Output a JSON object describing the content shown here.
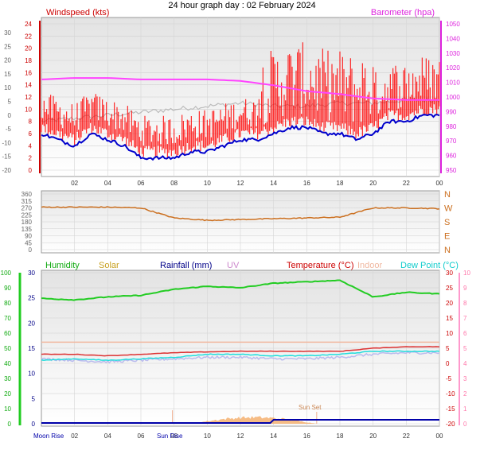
{
  "title": "24 hour graph day : 02 February 2024",
  "colors": {
    "wind": "#ff0000",
    "gust": "#ff0000",
    "wind_avg": "#0000cc",
    "wind_dir": "#cc7020",
    "barometer": "#ff44ff",
    "gray": "#bbbbbb",
    "humidity": "#22cc22",
    "solar": "#f5b070",
    "rainfall": "#0000aa",
    "uv": "#cc88cc",
    "temperature": "#dd3333",
    "indoor": "#f2b8a0",
    "dew_point": "#22dddd",
    "lavender": "#bbbbee"
  },
  "chart_data": [
    {
      "type": "line",
      "name": "wind-barometer",
      "xlabel_ticks": [
        "02",
        "04",
        "06",
        "08",
        "10",
        "12",
        "14",
        "16",
        "18",
        "20",
        "22",
        "00"
      ],
      "outer_left_ticks": [
        "30",
        "25",
        "20",
        "15",
        "10",
        "5",
        "0",
        "-5",
        "-10",
        "-15",
        "-20"
      ],
      "left_axis": {
        "title": "Windspeed (kts)",
        "ticks": [
          "24",
          "22",
          "20",
          "18",
          "16",
          "14",
          "12",
          "10",
          "8",
          "6",
          "4",
          "2",
          "0"
        ],
        "ylim": [
          0,
          25
        ]
      },
      "right_axis": {
        "title": "Barometer (hpa)",
        "ticks": [
          "1050",
          "1040",
          "1030",
          "1020",
          "1010",
          "1000",
          "990",
          "980",
          "970",
          "960",
          "950"
        ],
        "ylim": [
          945,
          1050
        ]
      },
      "series": [
        {
          "name": "Windspeed (kts)",
          "x": [
            0,
            1,
            2,
            3,
            4,
            5,
            6,
            7,
            8,
            9,
            10,
            11,
            12,
            13,
            14,
            15,
            16,
            17,
            18,
            19,
            20,
            21,
            22,
            23,
            24
          ],
          "values": [
            6,
            5,
            4,
            6,
            5,
            4,
            2,
            2,
            2,
            3,
            3,
            4,
            5,
            5,
            6,
            7,
            7,
            6,
            6,
            5,
            6,
            8,
            8,
            9,
            9
          ]
        },
        {
          "name": "Barometer (hpa)",
          "x": [
            0,
            2,
            4,
            6,
            8,
            10,
            12,
            14,
            16,
            18,
            20,
            22,
            24
          ],
          "values": [
            1012,
            1013,
            1013,
            1012,
            1012,
            1012,
            1011,
            1008,
            1004,
            1002,
            999,
            998,
            998
          ]
        }
      ]
    },
    {
      "type": "line",
      "name": "wind-direction",
      "left_ticks": [
        "360",
        "315",
        "270",
        "225",
        "180",
        "135",
        "90",
        "45",
        "0"
      ],
      "right_ticks": [
        "N",
        "W",
        "S",
        "E",
        "N"
      ],
      "ylim": [
        0,
        360
      ],
      "series": [
        {
          "x": [
            0,
            2,
            4,
            6,
            8,
            10,
            12,
            14,
            16,
            18,
            20,
            22,
            24
          ],
          "values": [
            275,
            275,
            275,
            270,
            205,
            190,
            195,
            200,
            205,
            210,
            270,
            270,
            265
          ]
        }
      ]
    },
    {
      "type": "line",
      "name": "environment",
      "legend": [
        "Humidity",
        "Solar",
        "Rainfall (mm)",
        "UV",
        "Temperature (°C)",
        "Indoor",
        "Dew Point (°C)"
      ],
      "humidity_ticks": [
        "100",
        "90",
        "80",
        "70",
        "60",
        "50",
        "40",
        "30",
        "20",
        "10",
        "0"
      ],
      "rain_ticks": [
        "30",
        "25",
        "20",
        "15",
        "10",
        "5",
        "0"
      ],
      "temp_ticks": [
        "30",
        "25",
        "20",
        "15",
        "10",
        "5",
        "0",
        "-5",
        "-10",
        "-15",
        "-20"
      ],
      "uv_ticks": [
        "10",
        "9",
        "8",
        "7",
        "6",
        "5",
        "4",
        "3",
        "2",
        "1",
        "0"
      ],
      "annotations": {
        "moon_rise": "Moon Rise",
        "sun_rise": "Sun Rise",
        "sun_set": "Sun Set"
      },
      "series": [
        {
          "name": "Humidity",
          "x": [
            0,
            2,
            4,
            6,
            8,
            10,
            12,
            14,
            16,
            18,
            20,
            22,
            24
          ],
          "values": [
            83,
            82,
            84,
            85,
            89,
            91,
            90,
            93,
            94,
            95,
            84,
            87,
            86
          ]
        },
        {
          "name": "Temperature (°C)",
          "x": [
            0,
            2,
            4,
            6,
            8,
            10,
            12,
            14,
            16,
            18,
            20,
            22,
            24
          ],
          "values": [
            3,
            3,
            2.5,
            3,
            3.5,
            3.8,
            4,
            4,
            4,
            4,
            5,
            5.5,
            5.5
          ]
        },
        {
          "name": "Dew Point (°C)",
          "x": [
            0,
            2,
            4,
            6,
            8,
            10,
            12,
            14,
            16,
            18,
            20,
            22,
            24
          ],
          "values": [
            1,
            1.5,
            1,
            1.5,
            2,
            3,
            3,
            2.5,
            2.5,
            3,
            4,
            4,
            4
          ]
        }
      ]
    }
  ]
}
